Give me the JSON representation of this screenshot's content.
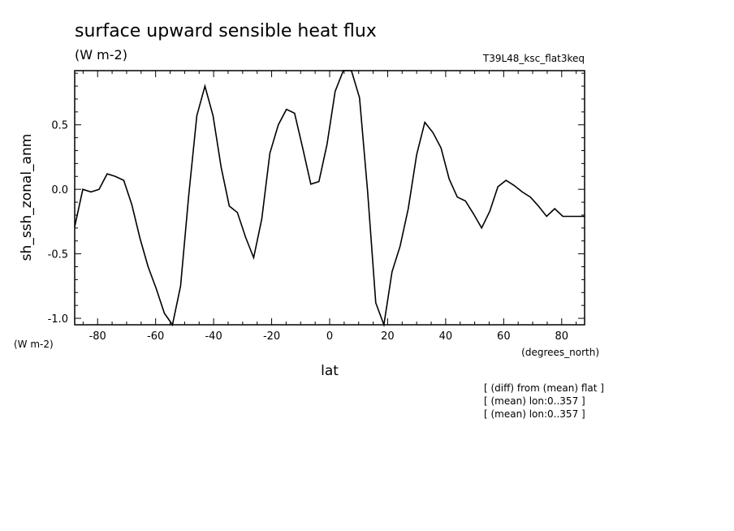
{
  "header": {
    "title": "surface upward sensible heat flux",
    "units": "(W m-2)",
    "run_name": "T39L48_ksc_flat3keq"
  },
  "axes": {
    "y_units_label": "(W m-2)",
    "x_units_label": "(degrees_north)"
  },
  "notes": [
    "[ (diff) from (mean) flat ]",
    "[ (mean) lon:0..357 ]",
    "[ (mean) lon:0..357 ]"
  ],
  "chart_data": {
    "type": "line",
    "title": "surface upward sensible heat flux",
    "xlabel": "lat",
    "ylabel": "sh_ssh_zonal_anm",
    "xlim": [
      -87.9,
      87.9
    ],
    "ylim": [
      -1.05,
      0.92
    ],
    "x_ticks": [
      -80,
      -60,
      -40,
      -20,
      0,
      20,
      40,
      60,
      80
    ],
    "y_ticks": [
      -1.0,
      -0.5,
      0.0,
      0.5
    ],
    "y_tick_labels": [
      "-1.0",
      "-0.5",
      "0.0",
      "0.5"
    ],
    "grid": false,
    "line_color": "#000000",
    "series": [
      {
        "x": [
          -87.9,
          -85.1,
          -82.3,
          -79.5,
          -76.7,
          -73.9,
          -71.0,
          -68.2,
          -65.4,
          -62.6,
          -59.8,
          -57.0,
          -54.2,
          -51.4,
          -48.6,
          -45.8,
          -43.0,
          -40.2,
          -37.4,
          -34.6,
          -31.8,
          -29.0,
          -26.2,
          -23.4,
          -20.6,
          -17.7,
          -14.9,
          -12.1,
          -9.3,
          -6.5,
          -3.7,
          -0.9,
          1.9,
          4.7,
          7.5,
          10.3,
          13.1,
          15.9,
          18.7,
          21.5,
          24.3,
          27.1,
          30.0,
          32.8,
          35.6,
          38.4,
          41.2,
          44.0,
          46.8,
          49.6,
          52.4,
          55.2,
          58.0,
          60.8,
          63.6,
          66.4,
          69.2,
          72.0,
          74.8,
          77.6,
          80.4,
          83.2,
          86.0,
          87.9
        ],
        "y": [
          -0.29,
          0.0,
          -0.02,
          0.0,
          0.12,
          0.1,
          0.07,
          -0.12,
          -0.38,
          -0.6,
          -0.77,
          -0.96,
          -1.05,
          -0.75,
          -0.05,
          0.57,
          0.8,
          0.57,
          0.17,
          -0.13,
          -0.18,
          -0.37,
          -0.53,
          -0.23,
          0.28,
          0.5,
          0.62,
          0.59,
          0.32,
          0.04,
          0.06,
          0.35,
          0.76,
          0.92,
          0.95,
          0.71,
          -0.02,
          -0.88,
          -1.05,
          -0.64,
          -0.44,
          -0.15,
          0.27,
          0.52,
          0.44,
          0.32,
          0.08,
          -0.06,
          -0.09,
          -0.19,
          -0.3,
          -0.17,
          0.02,
          0.07,
          0.03,
          -0.02,
          -0.06,
          -0.13,
          -0.21,
          -0.15,
          -0.21,
          -0.21,
          -0.21,
          -0.21
        ]
      }
    ]
  }
}
